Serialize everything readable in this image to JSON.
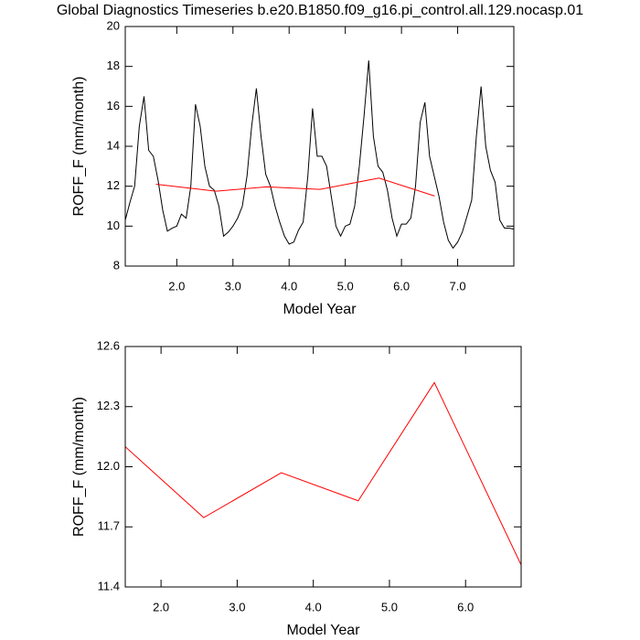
{
  "chart_data": [
    {
      "type": "line",
      "title": "Global Diagnostics Timeseries b.e20.B1850.f09_g16.pi_control.all.129.nocasp.01",
      "xlabel": "Model Year",
      "ylabel": "ROFF_F (mm/month)",
      "xlim": [
        1.083,
        8.0
      ],
      "ylim": [
        8,
        20
      ],
      "xticks": [
        {
          "value": 2,
          "label": "2.0"
        },
        {
          "value": 3,
          "label": "3.0"
        },
        {
          "value": 4,
          "label": "4.0"
        },
        {
          "value": 5,
          "label": "5.0"
        },
        {
          "value": 6,
          "label": "6.0"
        },
        {
          "value": 7,
          "label": "7.0"
        }
      ],
      "yticks": [
        8,
        10,
        12,
        14,
        16,
        18,
        20
      ],
      "series": [
        {
          "color": "#000000",
          "x": [
            1.083,
            1.167,
            1.25,
            1.333,
            1.417,
            1.5,
            1.583,
            1.667,
            1.75,
            1.833,
            1.917,
            2.0,
            2.083,
            2.167,
            2.25,
            2.333,
            2.417,
            2.5,
            2.583,
            2.667,
            2.75,
            2.833,
            2.917,
            3.0,
            3.083,
            3.167,
            3.25,
            3.333,
            3.417,
            3.5,
            3.583,
            3.667,
            3.75,
            3.833,
            3.917,
            4.0,
            4.083,
            4.167,
            4.25,
            4.333,
            4.417,
            4.5,
            4.583,
            4.667,
            4.75,
            4.833,
            4.917,
            5.0,
            5.083,
            5.167,
            5.25,
            5.333,
            5.417,
            5.5,
            5.583,
            5.667,
            5.75,
            5.833,
            5.917,
            6.0,
            6.083,
            6.167,
            6.25,
            6.333,
            6.417,
            6.5,
            6.583,
            6.667,
            6.75,
            6.833,
            6.917,
            7.0,
            7.083,
            7.167,
            7.25,
            7.333,
            7.417,
            7.5,
            7.583,
            7.667,
            7.75,
            7.833,
            7.917,
            8.0
          ],
          "values": [
            10.3,
            11.2,
            12.0,
            15.0,
            16.5,
            13.8,
            13.5,
            12.3,
            10.8,
            9.75,
            9.9,
            10.0,
            10.6,
            10.4,
            12.0,
            16.1,
            15.0,
            13.0,
            12.0,
            11.8,
            11.0,
            9.5,
            9.7,
            10.0,
            10.4,
            11.0,
            12.5,
            15.0,
            16.9,
            14.5,
            12.6,
            12.0,
            11.0,
            10.2,
            9.5,
            9.1,
            9.2,
            9.8,
            10.2,
            12.5,
            15.9,
            13.5,
            13.5,
            13.0,
            11.5,
            10.0,
            9.5,
            10.0,
            10.1,
            11.0,
            13.0,
            15.5,
            18.3,
            14.5,
            13.0,
            12.7,
            11.8,
            10.4,
            9.5,
            10.1,
            10.1,
            10.4,
            12.0,
            15.2,
            16.2,
            13.5,
            12.5,
            11.5,
            10.2,
            9.3,
            8.9,
            9.2,
            9.7,
            10.5,
            11.3,
            14.5,
            17.0,
            14.0,
            12.8,
            12.2,
            10.3,
            9.9,
            9.9,
            9.85
          ]
        },
        {
          "color": "#ff0000",
          "x": [
            1.63,
            2.7,
            3.6,
            4.55,
            5.6,
            6.59
          ],
          "values": [
            12.1,
            11.75,
            11.97,
            11.84,
            12.41,
            11.51
          ]
        }
      ]
    },
    {
      "type": "line",
      "xlabel": "Model Year",
      "ylabel": "ROFF_F (mm/month)",
      "xlim": [
        1.53,
        6.73
      ],
      "ylim": [
        11.4,
        12.6
      ],
      "xticks": [
        {
          "value": 2,
          "label": "2.0"
        },
        {
          "value": 3,
          "label": "3.0"
        },
        {
          "value": 4,
          "label": "4.0"
        },
        {
          "value": 5,
          "label": "5.0"
        },
        {
          "value": 6,
          "label": "6.0"
        }
      ],
      "yticks": [
        11.4,
        11.7,
        {
          "value": 12,
          "label": "12.0"
        },
        12.3,
        12.6
      ],
      "series": [
        {
          "color": "#ff0000",
          "x": [
            1.53,
            2.56,
            3.58,
            4.59,
            5.59,
            6.73
          ],
          "values": [
            12.1,
            11.746,
            11.97,
            11.83,
            12.42,
            11.51
          ]
        }
      ]
    }
  ]
}
